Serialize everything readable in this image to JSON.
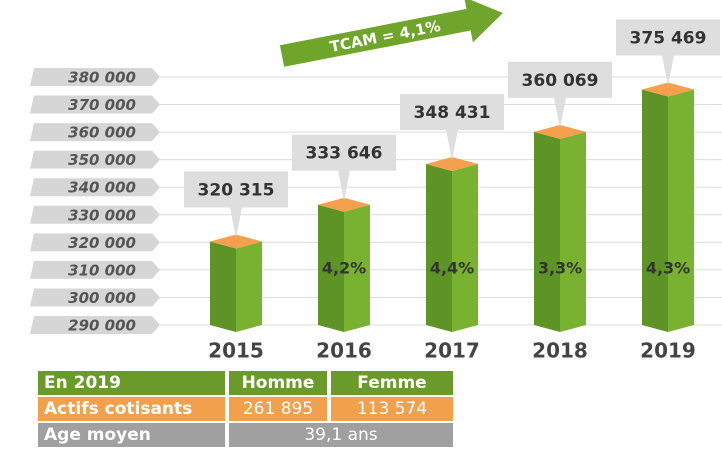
{
  "chart_data": {
    "type": "bar3d",
    "annotation": "TCAM = 4,1%",
    "categories": [
      "2015",
      "2016",
      "2017",
      "2018",
      "2019"
    ],
    "values": [
      320315,
      333646,
      348431,
      360069,
      375469
    ],
    "value_labels": [
      "320 315",
      "333 646",
      "348 431",
      "360 069",
      "375 469"
    ],
    "growth_labels": [
      null,
      "4,2%",
      "4,4%",
      "3,3%",
      "4,3%"
    ],
    "colors": {
      "left": "#5e9426",
      "right": "#79b130",
      "top": "#f4a04e"
    },
    "ylim": [
      290000,
      380000
    ],
    "yticks": [
      {
        "value": 290000,
        "label": "290 000"
      },
      {
        "value": 300000,
        "label": "300 000"
      },
      {
        "value": 310000,
        "label": "310 000"
      },
      {
        "value": 320000,
        "label": "320 000"
      },
      {
        "value": 330000,
        "label": "330 000"
      },
      {
        "value": 340000,
        "label": "340 000"
      },
      {
        "value": 350000,
        "label": "350 000"
      },
      {
        "value": 360000,
        "label": "360 000"
      },
      {
        "value": 370000,
        "label": "370 000"
      },
      {
        "value": 380000,
        "label": "380 000"
      }
    ],
    "grid": true
  },
  "table": {
    "header": [
      "En 2019",
      "Homme",
      "Femme"
    ],
    "rows": [
      [
        "Actifs cotisants",
        "261 895",
        "113 574"
      ],
      [
        "Age moyen",
        "39,1 ans"
      ]
    ]
  }
}
